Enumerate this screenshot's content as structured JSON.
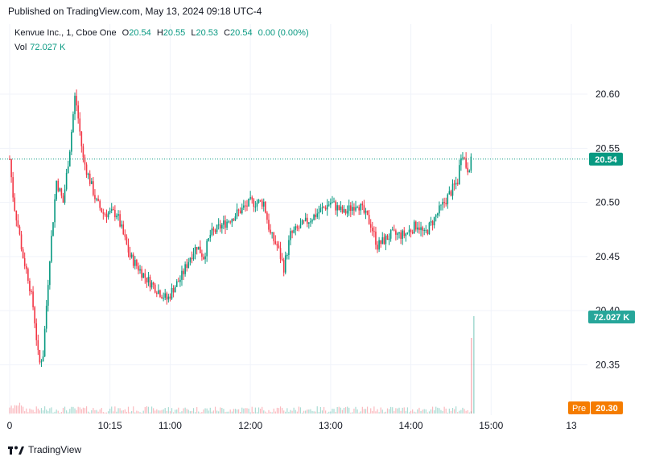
{
  "published": "Published on TradingView.com, May 13, 2024 09:18 UTC-4",
  "legend": {
    "symbol": "Kenvue Inc., 1, Cboe One",
    "o_label": "O",
    "o_value": "20.54",
    "h_label": "H",
    "h_value": "20.55",
    "l_label": "L",
    "l_value": "20.53",
    "c_label": "C",
    "c_value": "20.54",
    "change": "0.00 (0.00%)",
    "vol_label": "Vol",
    "vol_value": "72.027 K"
  },
  "price_labels": {
    "last": "20.54",
    "volume": "72.027 K",
    "pre_tag": "Pre",
    "pre_value": "20.30"
  },
  "colors": {
    "up": "#089981",
    "down": "#f23645",
    "pre": "#f57c00",
    "text": "#131722"
  },
  "brand": "TradingView",
  "chart_data": {
    "type": "candlestick",
    "x_ticks": [
      {
        "t": 0,
        "label": "0"
      },
      {
        "t": 75,
        "label": "10:15"
      },
      {
        "t": 120,
        "label": "11:00"
      },
      {
        "t": 180,
        "label": "12:00"
      },
      {
        "t": 240,
        "label": "13:00"
      },
      {
        "t": 300,
        "label": "14:00"
      },
      {
        "t": 360,
        "label": "15:00"
      },
      {
        "t": 420,
        "label": "13"
      }
    ],
    "y_ticks": [
      20.35,
      20.4,
      20.45,
      20.5,
      20.55,
      20.6
    ],
    "ylim": [
      20.305,
      20.632
    ],
    "last_price": 20.54,
    "anchors": [
      [
        0,
        20.54
      ],
      [
        3,
        20.5
      ],
      [
        6,
        20.48
      ],
      [
        10,
        20.45
      ],
      [
        14,
        20.43
      ],
      [
        18,
        20.4
      ],
      [
        22,
        20.35
      ],
      [
        25,
        20.36
      ],
      [
        30,
        20.45
      ],
      [
        35,
        20.52
      ],
      [
        40,
        20.5
      ],
      [
        45,
        20.55
      ],
      [
        49,
        20.6
      ],
      [
        52,
        20.57
      ],
      [
        55,
        20.54
      ],
      [
        60,
        20.52
      ],
      [
        65,
        20.5
      ],
      [
        70,
        20.49
      ],
      [
        80,
        20.49
      ],
      [
        85,
        20.47
      ],
      [
        90,
        20.45
      ],
      [
        96,
        20.44
      ],
      [
        102,
        20.43
      ],
      [
        110,
        20.42
      ],
      [
        118,
        20.41
      ],
      [
        122,
        20.42
      ],
      [
        128,
        20.43
      ],
      [
        135,
        20.45
      ],
      [
        140,
        20.46
      ],
      [
        145,
        20.45
      ],
      [
        150,
        20.47
      ],
      [
        160,
        20.48
      ],
      [
        170,
        20.49
      ],
      [
        180,
        20.5
      ],
      [
        190,
        20.5
      ],
      [
        195,
        20.47
      ],
      [
        200,
        20.46
      ],
      [
        205,
        20.44
      ],
      [
        210,
        20.47
      ],
      [
        220,
        20.48
      ],
      [
        230,
        20.49
      ],
      [
        240,
        20.5
      ],
      [
        250,
        20.49
      ],
      [
        260,
        20.5
      ],
      [
        270,
        20.48
      ],
      [
        275,
        20.46
      ],
      [
        285,
        20.47
      ],
      [
        295,
        20.47
      ],
      [
        305,
        20.48
      ],
      [
        310,
        20.47
      ],
      [
        315,
        20.48
      ],
      [
        320,
        20.49
      ],
      [
        325,
        20.5
      ],
      [
        330,
        20.51
      ],
      [
        335,
        20.52
      ],
      [
        338,
        20.55
      ],
      [
        342,
        20.53
      ],
      [
        346,
        20.54
      ]
    ]
  }
}
